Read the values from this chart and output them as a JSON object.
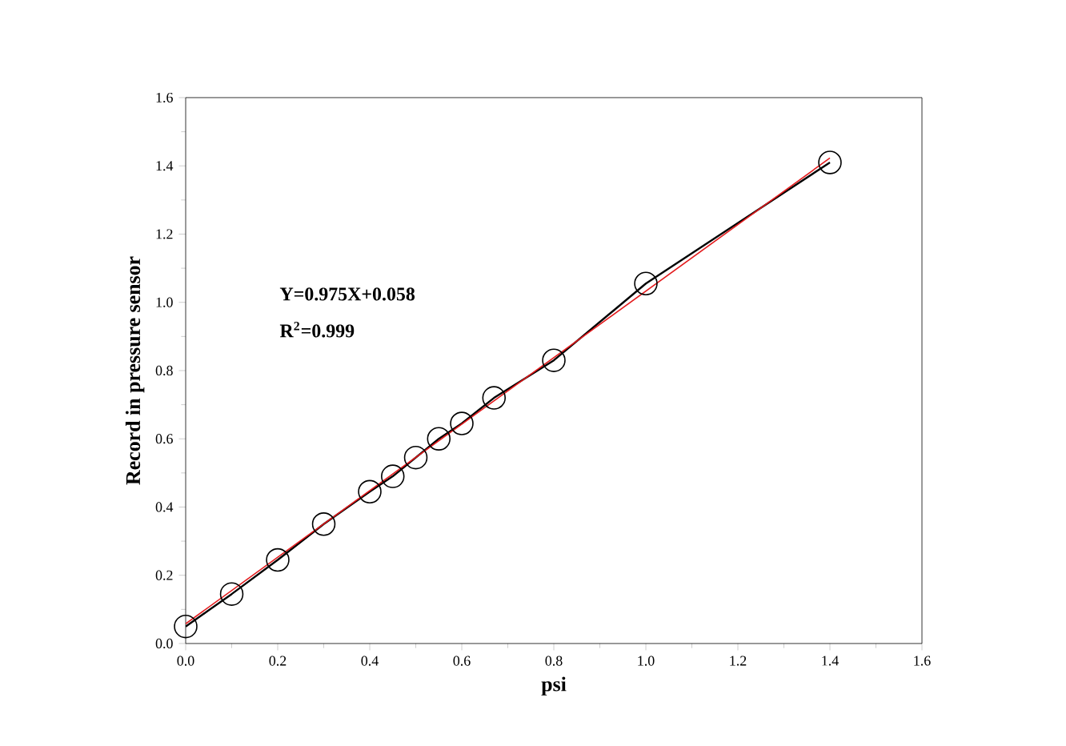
{
  "chart_data": {
    "type": "line",
    "xlabel": "psi",
    "ylabel": "Record in pressure sensor",
    "xlim": [
      0,
      1.6
    ],
    "ylim": [
      0,
      1.6
    ],
    "xticks": [
      {
        "value": 0,
        "label": "0.0"
      },
      0.2,
      0.4,
      0.6,
      0.8,
      {
        "value": 1,
        "label": "1.0"
      },
      1.2,
      1.4,
      1.6
    ],
    "yticks": [
      {
        "value": 0,
        "label": "0.0"
      },
      0.2,
      0.4,
      0.6,
      0.8,
      {
        "value": 1,
        "label": "1.0"
      },
      1.2,
      1.4,
      1.6
    ],
    "series": [
      {
        "color": "#000000",
        "marker": "circle",
        "x": [
          0,
          0.1,
          0.2,
          0.3,
          0.4,
          0.45,
          0.5,
          0.55,
          0.6,
          0.67,
          0.8,
          1.0,
          1.4
        ],
        "values": [
          0.05,
          0.145,
          0.245,
          0.35,
          0.445,
          0.49,
          0.545,
          0.6,
          0.645,
          0.72,
          0.83,
          1.055,
          1.41
        ]
      },
      {
        "color": "#e31a1c",
        "marker": "none",
        "x": [
          0,
          1.4
        ],
        "values": [
          0.058,
          1.423
        ]
      }
    ],
    "annotations": [
      "Y=0.975X+0.058",
      "R$^{2}$=0.999"
    ],
    "grid": false
  }
}
